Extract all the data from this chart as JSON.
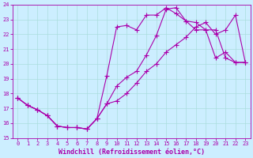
{
  "xlabel": "Windchill (Refroidissement éolien,°C)",
  "xlim": [
    -0.5,
    23.5
  ],
  "ylim": [
    15,
    24
  ],
  "xticks": [
    0,
    1,
    2,
    3,
    4,
    5,
    6,
    7,
    8,
    9,
    10,
    11,
    12,
    13,
    14,
    15,
    16,
    17,
    18,
    19,
    20,
    21,
    22,
    23
  ],
  "yticks": [
    15,
    16,
    17,
    18,
    19,
    20,
    21,
    22,
    23,
    24
  ],
  "bg_color": "#cceeff",
  "grid_color": "#aadddd",
  "line_color": "#aa00aa",
  "line1_x": [
    0,
    1,
    2,
    3,
    4,
    5,
    6,
    7,
    8,
    9,
    10,
    11,
    12,
    13,
    14,
    15,
    16,
    17,
    18,
    19,
    20,
    21,
    22,
    23
  ],
  "line1_y": [
    17.7,
    17.2,
    16.9,
    16.5,
    15.8,
    15.7,
    15.7,
    15.6,
    16.3,
    17.3,
    18.5,
    19.1,
    19.5,
    20.6,
    21.9,
    23.7,
    23.8,
    22.9,
    22.3,
    22.3,
    22.3,
    20.4,
    20.1,
    20.1
  ],
  "line2_x": [
    0,
    1,
    2,
    3,
    4,
    5,
    6,
    7,
    8,
    9,
    10,
    11,
    12,
    13,
    14,
    15,
    16,
    17,
    18,
    19,
    20,
    21,
    22,
    23
  ],
  "line2_y": [
    17.7,
    17.2,
    16.9,
    16.5,
    15.8,
    15.7,
    15.7,
    15.6,
    16.3,
    19.2,
    22.5,
    22.6,
    22.3,
    23.3,
    23.3,
    23.8,
    23.4,
    22.9,
    22.8,
    22.3,
    20.4,
    20.8,
    20.1,
    20.1
  ],
  "line3_x": [
    0,
    1,
    2,
    3,
    4,
    5,
    6,
    7,
    8,
    9,
    10,
    11,
    12,
    13,
    14,
    15,
    16,
    17,
    18,
    19,
    20,
    21,
    22,
    23
  ],
  "line3_y": [
    17.7,
    17.2,
    16.9,
    16.5,
    15.8,
    15.7,
    15.7,
    15.6,
    16.3,
    17.3,
    17.5,
    18.0,
    18.7,
    19.5,
    20.0,
    20.8,
    21.3,
    21.8,
    22.5,
    22.8,
    22.0,
    22.3,
    23.3,
    20.1
  ],
  "marker": "P",
  "markersize": 3,
  "linewidth": 0.8,
  "figsize": [
    3.2,
    2.0
  ],
  "dpi": 100,
  "xlabel_fontsize": 6,
  "tick_fontsize": 5
}
